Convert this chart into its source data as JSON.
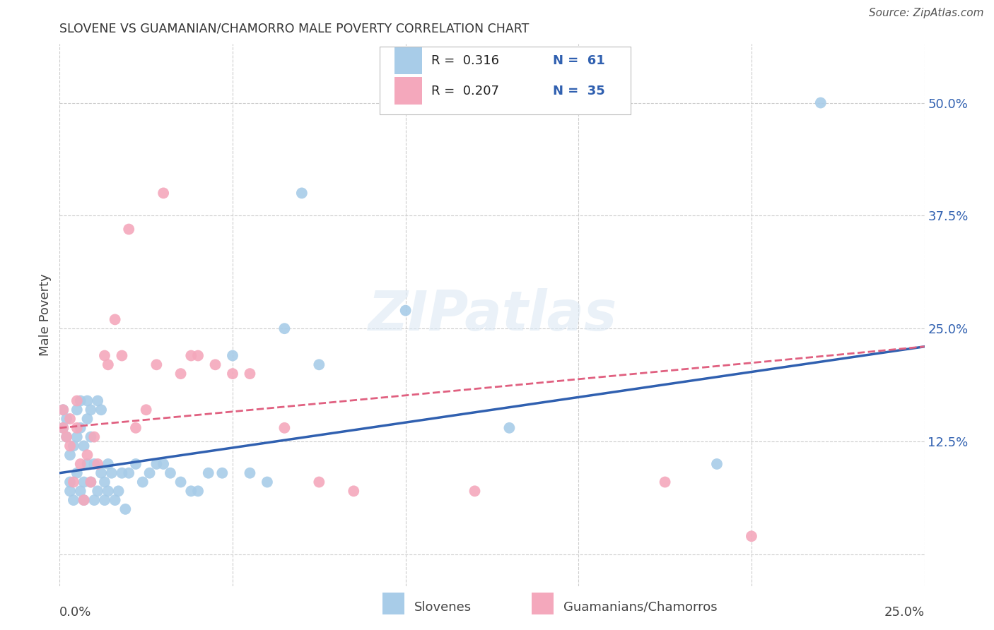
{
  "title": "SLOVENE VS GUAMANIAN/CHAMORRO MALE POVERTY CORRELATION CHART",
  "source": "Source: ZipAtlas.com",
  "ylabel": "Male Poverty",
  "watermark": "ZIPatlas",
  "legend_r1": "R =  0.316",
  "legend_n1": "N =  61",
  "legend_r2": "R =  0.207",
  "legend_n2": "N =  35",
  "slovene_color": "#a8cce8",
  "guamanian_color": "#f4a8bc",
  "slovene_line_color": "#3060b0",
  "guamanian_line_color": "#e06080",
  "background_color": "#ffffff",
  "grid_color": "#cccccc",
  "xlim": [
    0.0,
    0.25
  ],
  "ylim": [
    -0.035,
    0.565
  ],
  "yticks": [
    0.0,
    0.125,
    0.25,
    0.375,
    0.5
  ],
  "ytick_labels": [
    "",
    "12.5%",
    "25.0%",
    "37.5%",
    "50.0%"
  ],
  "xtick_positions": [
    0.0,
    0.05,
    0.1,
    0.15,
    0.2,
    0.25
  ],
  "slovene_x": [
    0.001,
    0.001,
    0.002,
    0.002,
    0.003,
    0.003,
    0.003,
    0.004,
    0.004,
    0.005,
    0.005,
    0.005,
    0.006,
    0.006,
    0.006,
    0.007,
    0.007,
    0.007,
    0.008,
    0.008,
    0.008,
    0.009,
    0.009,
    0.009,
    0.01,
    0.01,
    0.011,
    0.011,
    0.012,
    0.012,
    0.013,
    0.013,
    0.014,
    0.014,
    0.015,
    0.016,
    0.017,
    0.018,
    0.019,
    0.02,
    0.022,
    0.024,
    0.026,
    0.028,
    0.03,
    0.032,
    0.035,
    0.038,
    0.04,
    0.043,
    0.047,
    0.05,
    0.055,
    0.06,
    0.065,
    0.07,
    0.075,
    0.1,
    0.13,
    0.19,
    0.22
  ],
  "slovene_y": [
    0.16,
    0.14,
    0.13,
    0.15,
    0.07,
    0.11,
    0.08,
    0.12,
    0.06,
    0.13,
    0.09,
    0.16,
    0.07,
    0.14,
    0.17,
    0.06,
    0.12,
    0.08,
    0.1,
    0.15,
    0.17,
    0.08,
    0.13,
    0.16,
    0.06,
    0.1,
    0.07,
    0.17,
    0.09,
    0.16,
    0.06,
    0.08,
    0.07,
    0.1,
    0.09,
    0.06,
    0.07,
    0.09,
    0.05,
    0.09,
    0.1,
    0.08,
    0.09,
    0.1,
    0.1,
    0.09,
    0.08,
    0.07,
    0.07,
    0.09,
    0.09,
    0.22,
    0.09,
    0.08,
    0.25,
    0.4,
    0.21,
    0.27,
    0.14,
    0.1,
    0.5
  ],
  "guamanian_x": [
    0.001,
    0.001,
    0.002,
    0.003,
    0.003,
    0.004,
    0.005,
    0.005,
    0.006,
    0.007,
    0.008,
    0.009,
    0.01,
    0.011,
    0.013,
    0.014,
    0.016,
    0.018,
    0.02,
    0.022,
    0.025,
    0.028,
    0.03,
    0.035,
    0.038,
    0.04,
    0.045,
    0.05,
    0.055,
    0.065,
    0.075,
    0.085,
    0.12,
    0.175,
    0.2
  ],
  "guamanian_y": [
    0.16,
    0.14,
    0.13,
    0.12,
    0.15,
    0.08,
    0.14,
    0.17,
    0.1,
    0.06,
    0.11,
    0.08,
    0.13,
    0.1,
    0.22,
    0.21,
    0.26,
    0.22,
    0.36,
    0.14,
    0.16,
    0.21,
    0.4,
    0.2,
    0.22,
    0.22,
    0.21,
    0.2,
    0.2,
    0.14,
    0.08,
    0.07,
    0.07,
    0.08,
    0.02
  ]
}
